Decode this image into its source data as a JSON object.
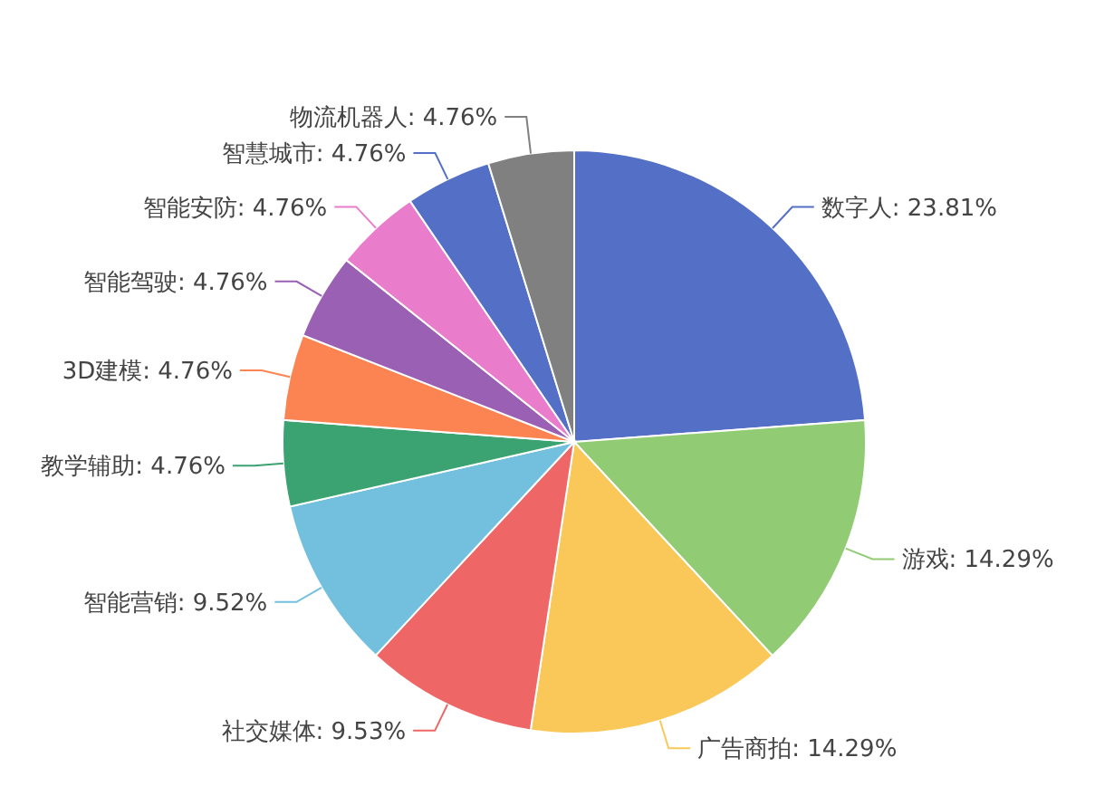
{
  "chart_data": {
    "type": "pie",
    "categories": [
      "数字人",
      "游戏",
      "广告商拍",
      "社交媒体",
      "智能营销",
      "教学辅助",
      "3D建模",
      "智能驾驶",
      "智能安防",
      "智慧城市",
      "物流机器人"
    ],
    "values": [
      23.81,
      14.29,
      14.29,
      9.53,
      9.52,
      4.76,
      4.76,
      4.76,
      4.76,
      4.76,
      4.76
    ],
    "colors": [
      "#5470c6",
      "#91cc75",
      "#fac858",
      "#ee6666",
      "#73c0de",
      "#3ba272",
      "#fc8452",
      "#9a60b4",
      "#ea7ccc",
      "#5470c6",
      "#808080"
    ],
    "value_labels": [
      "23.81%",
      "14.29%",
      "14.29%",
      "9.53%",
      "9.52%",
      "4.76%",
      "4.76%",
      "4.76%",
      "4.76%",
      "4.76%",
      "4.76%"
    ]
  }
}
